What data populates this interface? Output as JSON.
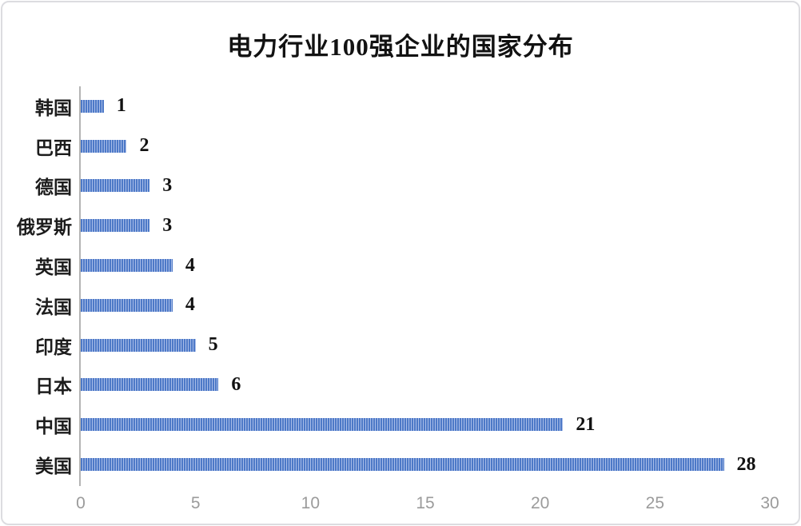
{
  "chart_data": {
    "type": "bar",
    "orientation": "horizontal",
    "title": "电力行业100强企业的国家分布",
    "categories": [
      "韩国",
      "巴西",
      "德国",
      "俄罗斯",
      "英国",
      "法国",
      "印度",
      "日本",
      "中国",
      "美国"
    ],
    "values": [
      1,
      2,
      3,
      3,
      4,
      4,
      5,
      6,
      21,
      28
    ],
    "xlabel": "",
    "ylabel": "",
    "xlim": [
      0,
      30
    ],
    "x_ticks": [
      0,
      5,
      10,
      15,
      20,
      25,
      30
    ],
    "grid": "off",
    "legend": "none",
    "data_labels": [
      "1",
      "2",
      "3",
      "3",
      "4",
      "4",
      "5",
      "6",
      "21",
      "28"
    ],
    "colors": {
      "bar": "#4d79c7",
      "bar_stripe": "#a9bde8",
      "axis_line": "#b4b4b4",
      "tick_label": "#9b9b9b",
      "title_text": "#121212",
      "background": "#ffffff",
      "frame_border": "#dcdce0"
    }
  }
}
